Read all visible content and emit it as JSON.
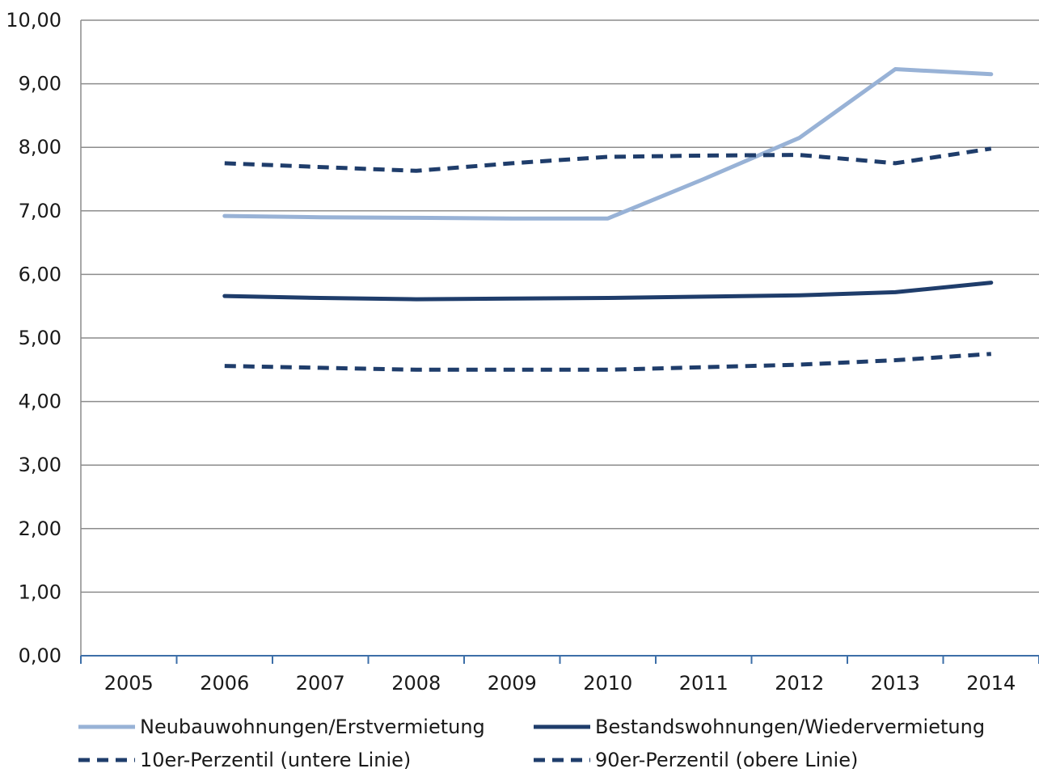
{
  "chart_data": {
    "type": "line",
    "title": "",
    "xlabel": "",
    "ylabel": "",
    "categories": [
      "2005",
      "2006",
      "2007",
      "2008",
      "2009",
      "2010",
      "2011",
      "2012",
      "2013",
      "2014"
    ],
    "y_tick_labels": [
      "0,00",
      "1,00",
      "2,00",
      "3,00",
      "4,00",
      "5,00",
      "6,00",
      "7,00",
      "8,00",
      "9,00",
      "10,00"
    ],
    "ylim": [
      0,
      10
    ],
    "y_ticks": [
      0,
      1,
      2,
      3,
      4,
      5,
      6,
      7,
      8,
      9,
      10
    ],
    "grid": "horizontal",
    "legend_position": "bottom",
    "series": [
      {
        "name": "Neubauwohnungen/Erstvermietung",
        "values": [
          null,
          6.92,
          6.9,
          6.89,
          6.88,
          6.88,
          7.5,
          8.15,
          9.23,
          9.15
        ],
        "color": "#98b2d6",
        "style": "solid"
      },
      {
        "name": "Bestandswohnungen/Wiedervermietung",
        "values": [
          null,
          5.66,
          5.63,
          5.61,
          5.62,
          5.63,
          5.65,
          5.67,
          5.72,
          5.87
        ],
        "color": "#1f3d6b",
        "style": "solid"
      },
      {
        "name": "10er-Perzentil (untere Linie)",
        "values": [
          null,
          4.56,
          4.53,
          4.5,
          4.5,
          4.5,
          4.54,
          4.58,
          4.65,
          4.75
        ],
        "color": "#1f3d6b",
        "style": "dashed"
      },
      {
        "name": "90er-Perzentil (obere Linie)",
        "values": [
          null,
          7.75,
          7.69,
          7.63,
          7.75,
          7.85,
          7.87,
          7.88,
          7.75,
          7.98
        ],
        "color": "#1f3d6b",
        "style": "dashed"
      }
    ],
    "axis_color": "#3d6fa8",
    "grid_color": "#8c8c8c"
  }
}
